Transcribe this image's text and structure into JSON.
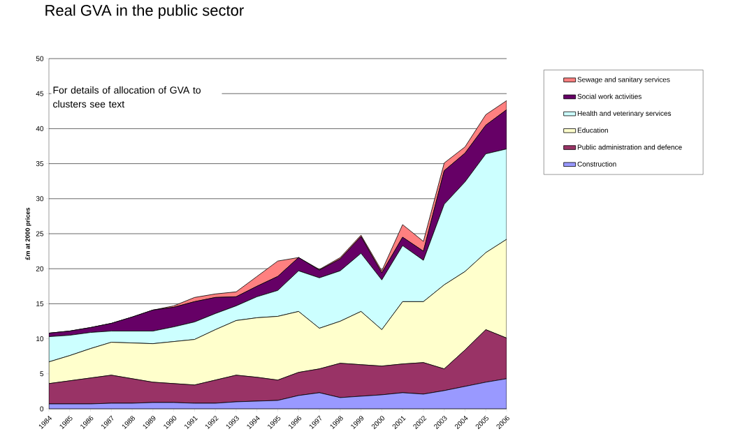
{
  "chart_data": {
    "type": "area",
    "title": "Real GVA in the public sector",
    "ylabel": "£m at 2000 prices",
    "categories": [
      "1984",
      "1985",
      "1986",
      "1987",
      "1988",
      "1989",
      "1990",
      "1991",
      "1992",
      "1993",
      "1994",
      "1995",
      "1996",
      "1997",
      "1998",
      "1999",
      "2000",
      "2001",
      "2002",
      "2003",
      "2004",
      "2005",
      "2006"
    ],
    "stacked": true,
    "series": [
      {
        "name": "Construction",
        "color": "#9999ff",
        "values": [
          0.7,
          0.7,
          0.7,
          0.8,
          0.8,
          0.9,
          0.9,
          0.8,
          0.8,
          1.0,
          1.1,
          1.2,
          1.9,
          2.3,
          1.6,
          1.8,
          2.0,
          2.3,
          2.1,
          2.6,
          3.2,
          3.8,
          4.3
        ]
      },
      {
        "name": "Public administration and defence",
        "color": "#993366",
        "values": [
          2.9,
          3.3,
          3.7,
          4.0,
          3.5,
          2.9,
          2.7,
          2.6,
          3.3,
          3.8,
          3.4,
          2.9,
          3.3,
          3.4,
          4.9,
          4.5,
          4.1,
          4.1,
          4.5,
          3.1,
          5.2,
          7.5,
          5.8
        ]
      },
      {
        "name": "Education",
        "color": "#ffffcc",
        "values": [
          3.1,
          3.6,
          4.2,
          4.7,
          5.1,
          5.5,
          6.0,
          6.5,
          7.2,
          7.8,
          8.5,
          9.1,
          8.7,
          5.8,
          6.0,
          7.6,
          5.2,
          8.9,
          8.7,
          12.0,
          11.2,
          11.0,
          14.1
        ]
      },
      {
        "name": "Health and veterinary services",
        "color": "#ccffff",
        "values": [
          3.6,
          2.9,
          2.3,
          1.6,
          1.7,
          1.8,
          2.1,
          2.5,
          2.3,
          2.1,
          3.0,
          3.7,
          5.8,
          7.2,
          7.2,
          8.3,
          7.1,
          8.0,
          5.9,
          11.5,
          12.8,
          14.1,
          12.9
        ]
      },
      {
        "name": "Social work activities",
        "color": "#660066",
        "values": [
          0.5,
          0.6,
          0.7,
          1.1,
          2.0,
          3.0,
          2.8,
          2.9,
          2.3,
          1.3,
          1.5,
          2.0,
          1.9,
          1.1,
          1.7,
          2.4,
          1.0,
          1.2,
          1.3,
          4.8,
          4.1,
          4.1,
          5.6
        ]
      },
      {
        "name": "Sewage and sanitary services",
        "color": "#ff8080",
        "values": [
          0,
          0,
          0,
          0,
          0,
          0,
          0.2,
          0.6,
          0.5,
          0.7,
          1.4,
          2.2,
          0,
          0.1,
          0.2,
          0.2,
          0.3,
          1.8,
          1.4,
          1.1,
          0.9,
          1.5,
          1.3
        ]
      }
    ],
    "ylim": [
      0,
      50
    ],
    "yticks": [
      0,
      5,
      10,
      15,
      20,
      25,
      30,
      35,
      40,
      45,
      50
    ],
    "grid": "y",
    "legend": "right",
    "annotations": [
      "For details of allocation of GVA to clusters see text"
    ]
  }
}
